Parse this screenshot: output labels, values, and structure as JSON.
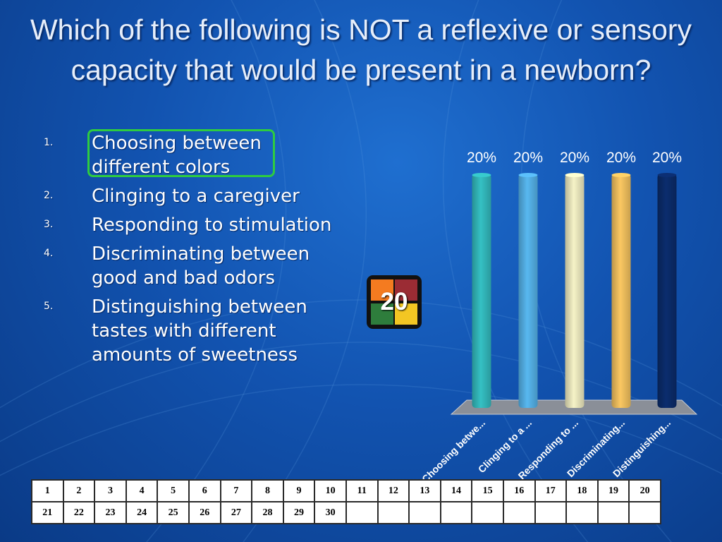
{
  "slide": {
    "title": "Which of the following is NOT a reflexive or sensory capacity that would be present in a newborn?"
  },
  "answers": [
    {
      "num": "1.",
      "text": "Choosing between different colors"
    },
    {
      "num": "2.",
      "text": "Clinging to a caregiver"
    },
    {
      "num": "3.",
      "text": "Responding to stimulation"
    },
    {
      "num": "4.",
      "text": "Discriminating between good and bad odors"
    },
    {
      "num": "5.",
      "text": "Distinguishing between tastes with different amounts of sweetness"
    }
  ],
  "correct_answer_index": 1,
  "countdown": {
    "value": "20",
    "colors": [
      "#f47b20",
      "#9b2c34",
      "#2e7d3c",
      "#f3c623"
    ]
  },
  "chart_data": {
    "type": "bar",
    "categories": [
      "Choosing betwe...",
      "Clinging to a ...",
      "Responding to ...",
      "Discriminating...",
      "Distinguishing..."
    ],
    "values": [
      20,
      20,
      20,
      20,
      20
    ],
    "data_labels": [
      "20%",
      "20%",
      "20%",
      "20%",
      "20%"
    ],
    "colors": [
      "#35c1c4",
      "#58b8f0",
      "#f6f3c7",
      "#fbc862",
      "#0b2d6e"
    ],
    "ylim": [
      0,
      20
    ],
    "grid": false,
    "legend": "none"
  },
  "response_grid": {
    "row1": [
      "1",
      "2",
      "3",
      "4",
      "5",
      "6",
      "7",
      "8",
      "9",
      "10",
      "11",
      "12",
      "13",
      "14",
      "15",
      "16",
      "17",
      "18",
      "19",
      "20"
    ],
    "row2": [
      "21",
      "22",
      "23",
      "24",
      "25",
      "26",
      "27",
      "28",
      "29",
      "30",
      "",
      "",
      "",
      "",
      "",
      "",
      "",
      "",
      "",
      ""
    ]
  }
}
